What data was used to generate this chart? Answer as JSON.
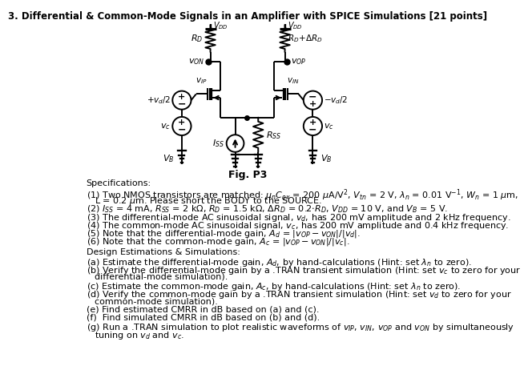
{
  "title": "3. Differential & Common-Mode Signals in an Amplifier with SPICE Simulations [21 points]",
  "fig_label": "Fig. P3",
  "bg_color": "#ffffff"
}
